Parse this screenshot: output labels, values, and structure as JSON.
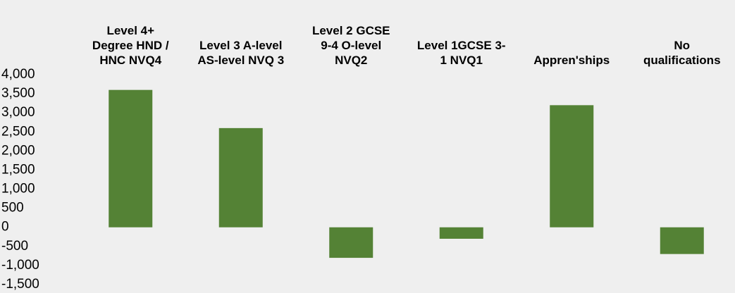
{
  "chart_data": {
    "type": "bar",
    "categories": [
      "Level 4+ Degree HND / HNC NVQ4",
      "Level 3 A-level AS-level NVQ 3",
      "Level 2 GCSE 9-4 O-level NVQ2",
      "Level 1GCSE 3-1 NVQ1",
      "Appren'ships",
      "No qualifications"
    ],
    "values": [
      3600,
      2600,
      -800,
      -300,
      3200,
      -700
    ],
    "color": "#548235",
    "ylim": [
      -1500,
      4000
    ],
    "yticks": [
      {
        "value": -1500,
        "label": "-1,500"
      },
      {
        "value": -1000,
        "label": "-1,000"
      },
      -500,
      0,
      500,
      {
        "value": 1000,
        "label": "1,000"
      },
      {
        "value": 1500,
        "label": "1,500"
      },
      {
        "value": 2000,
        "label": "2,000"
      },
      {
        "value": 2500,
        "label": "2,500"
      },
      {
        "value": 3000,
        "label": "3,000"
      },
      {
        "value": 3500,
        "label": "3,500"
      },
      {
        "value": 4000,
        "label": "4,000"
      }
    ],
    "grid": false
  }
}
